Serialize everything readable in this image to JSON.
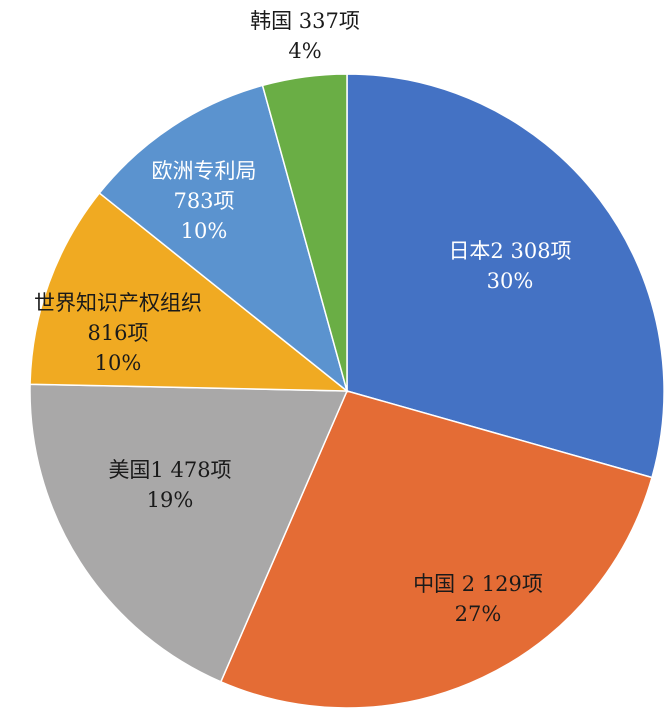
{
  "chart_data": {
    "type": "pie",
    "title": "",
    "slices": [
      {
        "name": "日本",
        "value_label": "2 308项",
        "value": 2308,
        "percent_label": "30%",
        "color": "#4472C4",
        "text_color": "#FFFFFF"
      },
      {
        "name": "中国",
        "value_label": " 2 129项",
        "value": 2129,
        "percent_label": "27%",
        "color": "#E46C35",
        "text_color": "#1a1a1a"
      },
      {
        "name": "美国",
        "value_label": "1 478项",
        "value": 1478,
        "percent_label": "19%",
        "color": "#A9A8A8",
        "text_color": "#1a1a1a"
      },
      {
        "name": "世界知识产权组织",
        "value_label": "816项",
        "value": 816,
        "percent_label": "10%",
        "color": "#F0AA22",
        "text_color": "#1a1a1a"
      },
      {
        "name": "欧洲专利局",
        "value_label": "783项",
        "value": 783,
        "percent_label": "10%",
        "color": "#5B93CF",
        "text_color": "#FFFFFF"
      },
      {
        "name": "韩国",
        "value_label": " 337项",
        "value": 337,
        "percent_label": "4%",
        "color": "#6AAE45",
        "text_color": "#1a1a1a"
      }
    ]
  }
}
